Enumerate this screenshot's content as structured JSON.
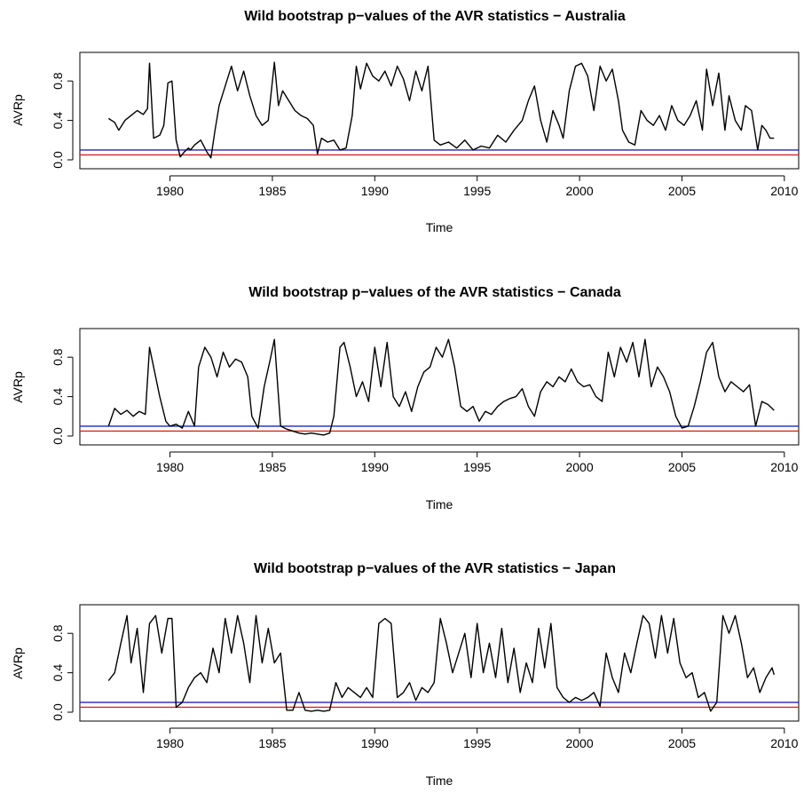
{
  "chart_data": [
    {
      "type": "line",
      "title": "Wild bootstrap p−values of the AVR statistics − Australia",
      "xlabel": "Time",
      "ylabel": "AVRp",
      "xlim": [
        1975.6,
        2010.7
      ],
      "ylim": [
        0.0,
        1.0
      ],
      "xticks": [
        "1980",
        "1985",
        "1990",
        "1995",
        "2000",
        "2005",
        "2010"
      ],
      "yticks": [
        "0.0",
        "0.4",
        "0.8"
      ],
      "hlines": [
        {
          "name": "0.1 reference",
          "value": 0.1,
          "color": "#2222bb"
        },
        {
          "name": "0.05 reference",
          "value": 0.05,
          "color": "#dd2222"
        }
      ],
      "series": [
        {
          "x": [
            1977.0,
            1977.3,
            1977.5,
            1977.8,
            1978.1,
            1978.4,
            1978.7,
            1978.9,
            1979.0,
            1979.2,
            1979.5,
            1979.7,
            1979.9,
            1980.1,
            1980.3,
            1980.5,
            1980.7,
            1980.9,
            1981.0,
            1981.2,
            1981.5,
            1981.8,
            1982.0,
            1982.2,
            1982.4,
            1982.7,
            1983.0,
            1983.3,
            1983.6,
            1983.9,
            1984.2,
            1984.5,
            1984.8,
            1985.1,
            1985.3,
            1985.5,
            1985.8,
            1986.1,
            1986.4,
            1986.7,
            1987.0,
            1987.2,
            1987.4,
            1987.7,
            1988.0,
            1988.3,
            1988.6,
            1988.9,
            1989.1,
            1989.3,
            1989.6,
            1989.9,
            1990.2,
            1990.5,
            1990.8,
            1991.1,
            1991.4,
            1991.7,
            1992.0,
            1992.3,
            1992.6,
            1992.9,
            1993.2,
            1993.6,
            1994.0,
            1994.4,
            1994.8,
            1995.2,
            1995.6,
            1996.0,
            1996.4,
            1996.8,
            1997.2,
            1997.5,
            1997.8,
            1998.1,
            1998.4,
            1998.7,
            1999.0,
            1999.2,
            1999.5,
            1999.8,
            2000.1,
            2000.4,
            2000.7,
            2001.0,
            2001.3,
            2001.6,
            2001.9,
            2002.1,
            2002.4,
            2002.7,
            2003.0,
            2003.3,
            2003.6,
            2003.9,
            2004.2,
            2004.5,
            2004.8,
            2005.1,
            2005.4,
            2005.7,
            2006.0,
            2006.2,
            2006.5,
            2006.8,
            2007.1,
            2007.3,
            2007.6,
            2007.9,
            2008.1,
            2008.4,
            2008.7,
            2008.9,
            2009.1,
            2009.3,
            2009.5
          ],
          "y": [
            0.42,
            0.38,
            0.3,
            0.4,
            0.45,
            0.5,
            0.46,
            0.52,
            0.98,
            0.22,
            0.25,
            0.35,
            0.78,
            0.8,
            0.2,
            0.03,
            0.08,
            0.12,
            0.1,
            0.15,
            0.2,
            0.08,
            0.02,
            0.3,
            0.55,
            0.75,
            0.95,
            0.7,
            0.9,
            0.65,
            0.45,
            0.35,
            0.4,
            0.99,
            0.55,
            0.7,
            0.6,
            0.5,
            0.45,
            0.42,
            0.35,
            0.06,
            0.22,
            0.18,
            0.2,
            0.1,
            0.12,
            0.45,
            0.95,
            0.72,
            0.98,
            0.85,
            0.8,
            0.9,
            0.75,
            0.95,
            0.82,
            0.6,
            0.9,
            0.7,
            0.95,
            0.2,
            0.15,
            0.18,
            0.12,
            0.2,
            0.1,
            0.14,
            0.12,
            0.25,
            0.18,
            0.3,
            0.4,
            0.6,
            0.75,
            0.4,
            0.18,
            0.5,
            0.35,
            0.22,
            0.7,
            0.95,
            0.98,
            0.85,
            0.5,
            0.95,
            0.8,
            0.92,
            0.6,
            0.3,
            0.18,
            0.15,
            0.5,
            0.4,
            0.35,
            0.45,
            0.3,
            0.55,
            0.4,
            0.35,
            0.45,
            0.6,
            0.3,
            0.92,
            0.55,
            0.88,
            0.3,
            0.65,
            0.4,
            0.3,
            0.55,
            0.5,
            0.1,
            0.35,
            0.3,
            0.22,
            0.22
          ]
        }
      ]
    },
    {
      "type": "line",
      "title": "Wild bootstrap p−values of the AVR statistics − Canada",
      "xlabel": "Time",
      "ylabel": "AVRp",
      "xlim": [
        1975.6,
        2010.7
      ],
      "ylim": [
        0.0,
        1.0
      ],
      "xticks": [
        "1980",
        "1985",
        "1990",
        "1995",
        "2000",
        "2005",
        "2010"
      ],
      "yticks": [
        "0.0",
        "0.4",
        "0.8"
      ],
      "hlines": [
        {
          "name": "0.1 reference",
          "value": 0.1,
          "color": "#2222bb"
        },
        {
          "name": "0.05 reference",
          "value": 0.05,
          "color": "#dd2222"
        }
      ],
      "series": [
        {
          "x": [
            1977.0,
            1977.3,
            1977.6,
            1977.9,
            1978.2,
            1978.5,
            1978.8,
            1979.0,
            1979.2,
            1979.5,
            1979.8,
            1980.0,
            1980.3,
            1980.6,
            1980.9,
            1981.2,
            1981.4,
            1981.7,
            1982.0,
            1982.3,
            1982.6,
            1982.9,
            1983.2,
            1983.5,
            1983.8,
            1984.0,
            1984.3,
            1984.6,
            1984.9,
            1985.1,
            1985.4,
            1985.7,
            1986.0,
            1986.3,
            1986.6,
            1986.9,
            1987.2,
            1987.5,
            1987.8,
            1988.0,
            1988.3,
            1988.5,
            1988.8,
            1989.1,
            1989.4,
            1989.7,
            1990.0,
            1990.3,
            1990.6,
            1990.9,
            1991.2,
            1991.5,
            1991.8,
            1992.1,
            1992.4,
            1992.7,
            1993.0,
            1993.3,
            1993.6,
            1993.9,
            1994.2,
            1994.5,
            1994.8,
            1995.1,
            1995.4,
            1995.7,
            1996.0,
            1996.3,
            1996.6,
            1996.9,
            1997.2,
            1997.5,
            1997.8,
            1998.1,
            1998.4,
            1998.7,
            1999.0,
            1999.3,
            1999.6,
            1999.9,
            2000.2,
            2000.5,
            2000.8,
            2001.1,
            2001.4,
            2001.7,
            2002.0,
            2002.3,
            2002.6,
            2002.9,
            2003.2,
            2003.5,
            2003.8,
            2004.1,
            2004.4,
            2004.7,
            2005.0,
            2005.3,
            2005.6,
            2005.9,
            2006.2,
            2006.5,
            2006.8,
            2007.1,
            2007.4,
            2007.7,
            2008.0,
            2008.3,
            2008.6,
            2008.9,
            2009.2,
            2009.5
          ],
          "y": [
            0.1,
            0.28,
            0.22,
            0.26,
            0.2,
            0.25,
            0.22,
            0.9,
            0.7,
            0.4,
            0.15,
            0.1,
            0.12,
            0.08,
            0.25,
            0.1,
            0.7,
            0.9,
            0.8,
            0.6,
            0.85,
            0.7,
            0.78,
            0.75,
            0.6,
            0.2,
            0.08,
            0.5,
            0.78,
            0.98,
            0.1,
            0.07,
            0.05,
            0.03,
            0.02,
            0.03,
            0.02,
            0.01,
            0.03,
            0.2,
            0.9,
            0.95,
            0.7,
            0.4,
            0.55,
            0.35,
            0.9,
            0.5,
            0.95,
            0.4,
            0.3,
            0.45,
            0.25,
            0.5,
            0.65,
            0.7,
            0.9,
            0.8,
            0.98,
            0.7,
            0.3,
            0.25,
            0.3,
            0.15,
            0.25,
            0.22,
            0.3,
            0.35,
            0.38,
            0.4,
            0.48,
            0.3,
            0.2,
            0.45,
            0.55,
            0.5,
            0.6,
            0.55,
            0.68,
            0.55,
            0.5,
            0.52,
            0.4,
            0.35,
            0.85,
            0.6,
            0.9,
            0.75,
            0.95,
            0.6,
            0.98,
            0.5,
            0.7,
            0.6,
            0.45,
            0.2,
            0.08,
            0.1,
            0.3,
            0.55,
            0.85,
            0.95,
            0.6,
            0.45,
            0.55,
            0.5,
            0.45,
            0.52,
            0.1,
            0.35,
            0.32,
            0.26
          ]
        }
      ]
    },
    {
      "type": "line",
      "title": "Wild bootstrap p−values of the AVR statistics − Japan",
      "xlabel": "Time",
      "ylabel": "AVRp",
      "xlim": [
        1975.6,
        2010.7
      ],
      "ylim": [
        0.0,
        1.0
      ],
      "xticks": [
        "1980",
        "1985",
        "1990",
        "1995",
        "2000",
        "2005",
        "2010"
      ],
      "yticks": [
        "0.0",
        "0.4",
        "0.8"
      ],
      "hlines": [
        {
          "name": "0.1 reference",
          "value": 0.1,
          "color": "#2222bb"
        },
        {
          "name": "0.05 reference",
          "value": 0.05,
          "color": "#dd2222"
        }
      ],
      "series": [
        {
          "x": [
            1977.0,
            1977.3,
            1977.6,
            1977.9,
            1978.1,
            1978.4,
            1978.7,
            1979.0,
            1979.3,
            1979.6,
            1979.9,
            1980.1,
            1980.3,
            1980.6,
            1980.9,
            1981.2,
            1981.5,
            1981.8,
            1982.1,
            1982.4,
            1982.7,
            1983.0,
            1983.3,
            1983.6,
            1983.9,
            1984.2,
            1984.5,
            1984.8,
            1985.1,
            1985.4,
            1985.7,
            1986.0,
            1986.3,
            1986.6,
            1986.9,
            1987.2,
            1987.5,
            1987.8,
            1988.1,
            1988.4,
            1988.7,
            1989.0,
            1989.3,
            1989.6,
            1989.9,
            1990.2,
            1990.5,
            1990.8,
            1991.1,
            1991.4,
            1991.7,
            1992.0,
            1992.3,
            1992.6,
            1992.9,
            1993.2,
            1993.5,
            1993.8,
            1994.1,
            1994.4,
            1994.7,
            1995.0,
            1995.3,
            1995.6,
            1995.9,
            1996.2,
            1996.5,
            1996.8,
            1997.1,
            1997.4,
            1997.7,
            1998.0,
            1998.3,
            1998.6,
            1998.9,
            1999.2,
            1999.5,
            1999.8,
            2000.1,
            2000.4,
            2000.7,
            2001.0,
            2001.3,
            2001.6,
            2001.9,
            2002.2,
            2002.5,
            2002.8,
            2003.1,
            2003.4,
            2003.7,
            2004.0,
            2004.3,
            2004.6,
            2004.9,
            2005.2,
            2005.5,
            2005.8,
            2006.1,
            2006.4,
            2006.7,
            2007.0,
            2007.3,
            2007.6,
            2007.9,
            2008.2,
            2008.5,
            2008.8,
            2009.1,
            2009.4,
            2009.5
          ],
          "y": [
            0.32,
            0.4,
            0.7,
            0.98,
            0.5,
            0.85,
            0.2,
            0.9,
            0.98,
            0.6,
            0.95,
            0.95,
            0.05,
            0.1,
            0.25,
            0.35,
            0.4,
            0.3,
            0.65,
            0.4,
            0.95,
            0.6,
            0.98,
            0.7,
            0.3,
            0.98,
            0.5,
            0.85,
            0.5,
            0.6,
            0.02,
            0.02,
            0.2,
            0.02,
            0.01,
            0.02,
            0.01,
            0.02,
            0.3,
            0.15,
            0.25,
            0.2,
            0.15,
            0.25,
            0.15,
            0.9,
            0.95,
            0.9,
            0.15,
            0.2,
            0.3,
            0.12,
            0.25,
            0.2,
            0.3,
            0.95,
            0.7,
            0.4,
            0.6,
            0.8,
            0.35,
            0.9,
            0.4,
            0.7,
            0.35,
            0.85,
            0.3,
            0.65,
            0.2,
            0.5,
            0.3,
            0.85,
            0.45,
            0.9,
            0.25,
            0.15,
            0.1,
            0.15,
            0.12,
            0.15,
            0.2,
            0.06,
            0.6,
            0.35,
            0.2,
            0.6,
            0.4,
            0.7,
            0.98,
            0.9,
            0.55,
            0.98,
            0.6,
            0.95,
            0.5,
            0.35,
            0.4,
            0.15,
            0.2,
            0.01,
            0.1,
            0.98,
            0.8,
            0.98,
            0.7,
            0.35,
            0.45,
            0.2,
            0.35,
            0.45,
            0.38
          ]
        }
      ]
    }
  ]
}
